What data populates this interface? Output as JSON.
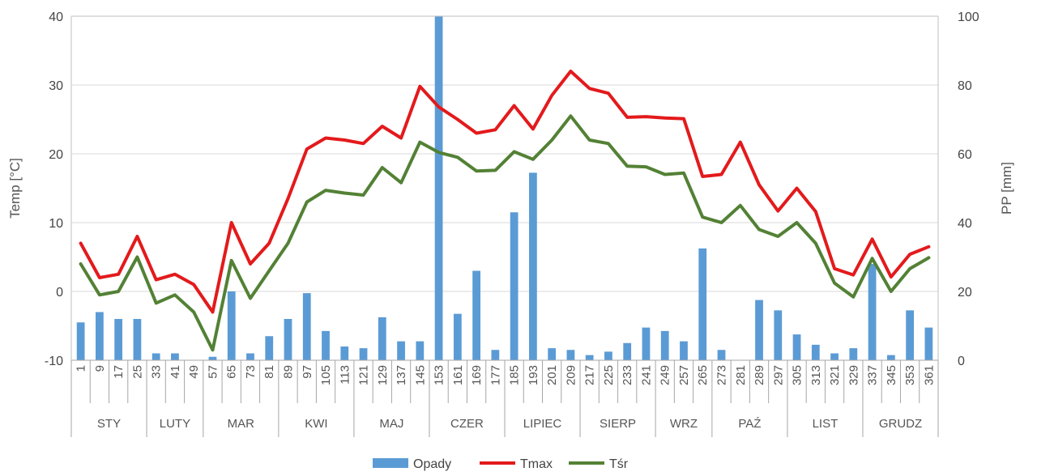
{
  "chart_data": {
    "type": "bar",
    "title": "",
    "categories": [
      "1",
      "9",
      "17",
      "25",
      "33",
      "41",
      "49",
      "57",
      "65",
      "73",
      "81",
      "89",
      "97",
      "105",
      "113",
      "121",
      "129",
      "137",
      "145",
      "153",
      "161",
      "169",
      "177",
      "185",
      "193",
      "201",
      "209",
      "217",
      "225",
      "233",
      "241",
      "249",
      "257",
      "265",
      "273",
      "281",
      "289",
      "297",
      "305",
      "313",
      "321",
      "329",
      "337",
      "345",
      "353",
      "361"
    ],
    "months": [
      {
        "label": "STY",
        "first": 0,
        "last": 3
      },
      {
        "label": "LUTY",
        "first": 4,
        "last": 6
      },
      {
        "label": "MAR",
        "first": 7,
        "last": 10
      },
      {
        "label": "KWI",
        "first": 11,
        "last": 14
      },
      {
        "label": "MAJ",
        "first": 15,
        "last": 18
      },
      {
        "label": "CZER",
        "first": 19,
        "last": 22
      },
      {
        "label": "LIPIEC",
        "first": 23,
        "last": 26
      },
      {
        "label": "SIERP",
        "first": 27,
        "last": 30
      },
      {
        "label": "WRZ",
        "first": 31,
        "last": 33
      },
      {
        "label": "PAŹ",
        "first": 34,
        "last": 37
      },
      {
        "label": "LIST",
        "first": 38,
        "last": 41
      },
      {
        "label": "GRUDZ",
        "first": 42,
        "last": 45
      }
    ],
    "series": [
      {
        "name": "Opady",
        "type": "bar",
        "axis": "right",
        "color": "#5b9bd5",
        "values": [
          11,
          14,
          12,
          12,
          2,
          2,
          0,
          1,
          20,
          2,
          7,
          12,
          19.5,
          8.5,
          4,
          3.5,
          12.5,
          5.5,
          5.5,
          100,
          13.5,
          26,
          3,
          43,
          54.5,
          3.5,
          3,
          1.5,
          2.5,
          5,
          9.5,
          8.5,
          5.5,
          32.5,
          3,
          0,
          17.5,
          14.5,
          7.5,
          4.5,
          2,
          3.5,
          28,
          1.5,
          14.5,
          9.5
        ]
      },
      {
        "name": "Tmax",
        "type": "line",
        "axis": "left",
        "color": "#e31a1c",
        "values": [
          7,
          2,
          2.5,
          8,
          1.7,
          2.5,
          1,
          -3,
          10,
          4,
          7,
          13.5,
          20.7,
          22.3,
          22,
          21.5,
          24,
          22.3,
          29.8,
          26.8,
          25,
          23,
          23.5,
          27,
          23.6,
          28.5,
          32,
          29.5,
          28.8,
          25.3,
          25.4,
          25.2,
          25.1,
          16.7,
          17,
          21.7,
          15.5,
          11.7,
          15,
          11.6,
          3.3,
          2.4,
          7.6,
          2.1,
          5.4,
          6.5
        ]
      },
      {
        "name": "Tśr",
        "type": "line",
        "axis": "left",
        "color": "#538135",
        "values": [
          4,
          -0.5,
          0,
          5,
          -1.7,
          -0.5,
          -3,
          -8.5,
          4.5,
          -1,
          3,
          7,
          13,
          14.7,
          14.3,
          14,
          18,
          15.8,
          21.7,
          20.2,
          19.5,
          17.5,
          17.6,
          20.3,
          19.2,
          22,
          25.5,
          22,
          21.5,
          18.2,
          18.1,
          17,
          17.2,
          10.8,
          10,
          12.5,
          9,
          8,
          10,
          7,
          1.2,
          -0.8,
          4.8,
          0,
          3.3,
          4.9
        ]
      }
    ],
    "y_left": {
      "label": "Temp [°C]",
      "min": -10,
      "max": 40,
      "ticks": [
        -10,
        0,
        10,
        20,
        30,
        40
      ]
    },
    "y_right": {
      "label": "PP [mm]",
      "min": 0,
      "max": 100,
      "ticks": [
        0,
        20,
        40,
        60,
        80,
        100
      ]
    },
    "grid": "horizontal",
    "legend": {
      "position": "bottom",
      "entries": [
        "Opady",
        "Tmax",
        "Tśr"
      ]
    }
  }
}
